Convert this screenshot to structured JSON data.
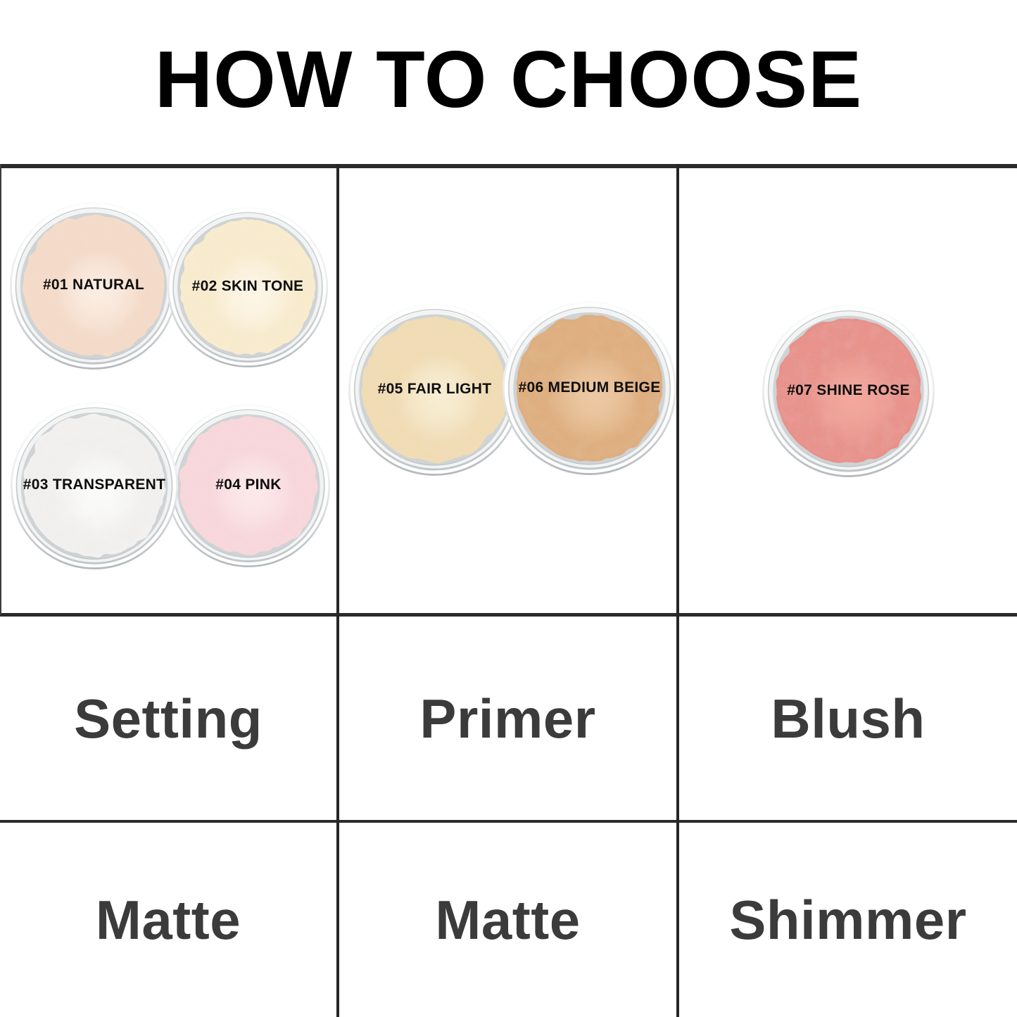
{
  "title": "HOW TO CHOOSE",
  "rows": {
    "use": [
      "Setting",
      "Primer",
      "Blush"
    ],
    "finish": [
      "Matte",
      "Matte",
      "Shimmer"
    ]
  },
  "shades": [
    {
      "label": "#01 NATURAL",
      "base": "#f5dbc9",
      "light": "#fbece1",
      "dark": "#e2bb9f",
      "shimmer": false
    },
    {
      "label": "#02 SKIN TONE",
      "base": "#f9ecce",
      "light": "#fdf6e6",
      "dark": "#e9d2a6",
      "shimmer": false
    },
    {
      "label": "#03 TRANSPARENT",
      "base": "#f2f1ef",
      "light": "#fbfbfa",
      "dark": "#d8d6d2",
      "shimmer": false
    },
    {
      "label": "#04 PINK",
      "base": "#f8d7db",
      "light": "#fce8ea",
      "dark": "#eeb9c3",
      "shimmer": false
    },
    {
      "label": "#05 FAIR LIGHT",
      "base": "#f1dcb4",
      "light": "#f8edd2",
      "dark": "#ddbe8a",
      "shimmer": false
    },
    {
      "label": "#06 MEDIUM BEIGE",
      "base": "#dfae7f",
      "light": "#ecc8a2",
      "dark": "#c08a55",
      "shimmer": false
    },
    {
      "label": "#07 SHINE ROSE",
      "base": "#e8918a",
      "light": "#f2a79c",
      "dark": "#cf7068",
      "shimmer": true
    }
  ],
  "grid_color": "#2b2b2b"
}
